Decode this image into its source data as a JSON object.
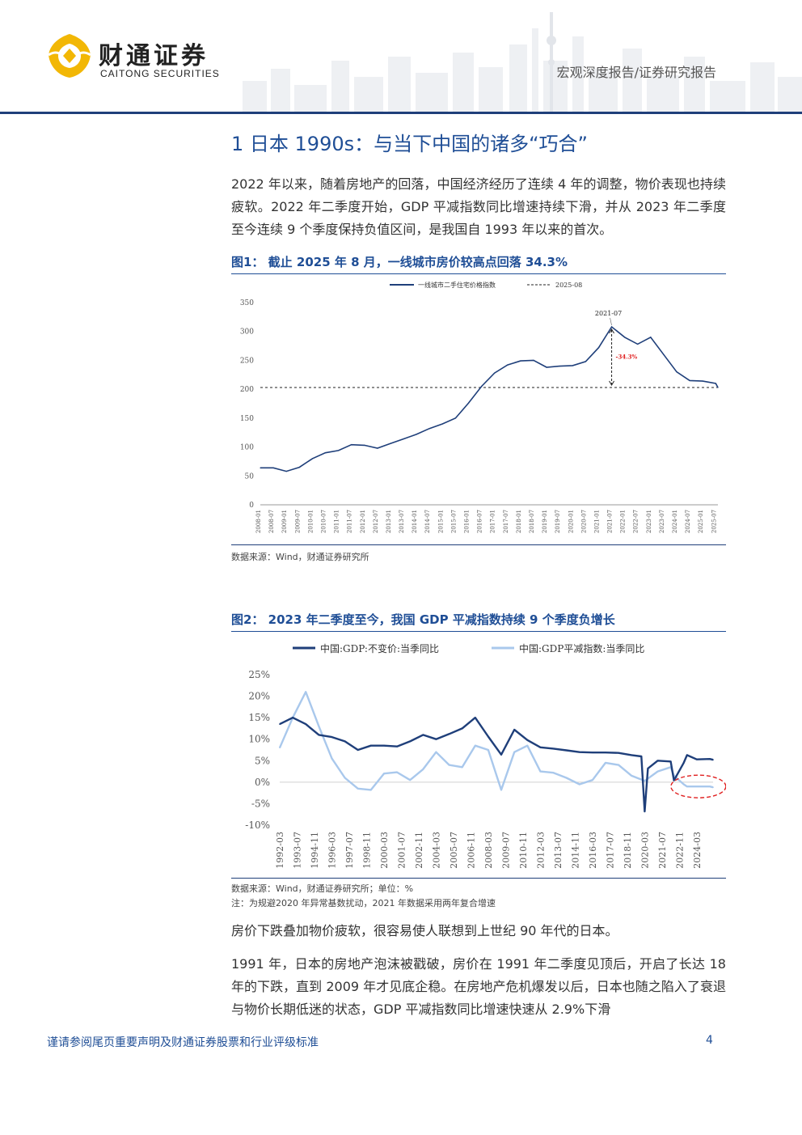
{
  "header": {
    "brand_cn": "财通证券",
    "brand_en": "CAITONG SECURITIES",
    "report_type": "宏观深度报告/证券研究报告"
  },
  "section": {
    "title": "1  日本 1990s：与当下中国的诸多“巧合”"
  },
  "paragraphs": {
    "p1": "2022 年以来，随着房地产的回落，中国经济经历了连续 4 年的调整，物价表现也持续疲软。2022 年二季度开始，GDP 平减指数同比增速持续下滑，并从 2023 年二季度至今连续 9 个季度保持负值区间，是我国自 1993 年以来的首次。",
    "p2": "房价下跌叠加物价疲软，很容易使人联想到上世纪 90 年代的日本。",
    "p3": "1991 年，日本的房地产泡沫被戳破，房价在 1991 年二季度见顶后，开启了长达 18 年的下跌，直到 2009 年才见底企稳。在房地产危机爆发以后，日本也随之陷入了衰退与物价长期低迷的状态，GDP 平减指数同比增速快速从 2.9%下滑"
  },
  "figure1": {
    "title": "图1：  截止 2025 年 8 月，一线城市房价较高点回落 34.3%",
    "source": "数据来源：Wind，财通证券研究所"
  },
  "figure2": {
    "title": "图2：  2023 年二季度至今，我国 GDP 平减指数持续 9 个季度负增长",
    "source": "数据来源：Wind，财通证券研究所；单位：%",
    "note": "注：为规避2020 年异常基数扰动，2021 年数据采用两年复合增速"
  },
  "footer": {
    "disclaimer": "谨请参阅尾页重要声明及财通证券股票和行业评级标准",
    "page": "4"
  },
  "colors": {
    "primary": "#1f4e96",
    "dark_navy": "#1f3f7a",
    "light_series": "#a9c8ec",
    "highlight_red": "#e02020",
    "logo_gold": "#f2b705"
  },
  "chart_data": [
    {
      "type": "line",
      "series": [
        {
          "name": "一线城市二手住宅价格指数",
          "x": [
            "2008-01",
            "2008-07",
            "2009-01",
            "2009-07",
            "2010-01",
            "2010-07",
            "2011-01",
            "2011-07",
            "2012-01",
            "2012-07",
            "2013-01",
            "2013-07",
            "2014-01",
            "2014-07",
            "2015-01",
            "2015-07",
            "2016-01",
            "2016-07",
            "2017-01",
            "2017-07",
            "2018-01",
            "2018-07",
            "2019-01",
            "2019-07",
            "2020-01",
            "2020-07",
            "2021-01",
            "2021-07",
            "2022-01",
            "2022-07",
            "2023-01",
            "2023-07",
            "2024-01",
            "2024-07",
            "2025-01",
            "2025-07",
            "2025-08"
          ],
          "values": [
            64,
            64,
            58,
            65,
            80,
            90,
            94,
            104,
            103,
            98,
            106,
            114,
            122,
            132,
            140,
            150,
            176,
            205,
            228,
            242,
            249,
            250,
            238,
            240,
            241,
            248,
            272,
            308,
            290,
            278,
            290,
            260,
            230,
            215,
            214,
            210,
            203
          ]
        },
        {
          "name": "2025-08",
          "values": [
            203
          ]
        }
      ],
      "yticks": [
        "0",
        "50",
        "100",
        "150",
        "200",
        "250",
        "300",
        "350"
      ],
      "xticks": [
        "2008-01",
        "2008-07",
        "2009-01",
        "2009-07",
        "2010-01",
        "2010-07",
        "2011-01",
        "2011-07",
        "2012-01",
        "2012-07",
        "2013-01",
        "2013-07",
        "2014-01",
        "2014-07",
        "2015-01",
        "2015-07",
        "2016-01",
        "2016-07",
        "2017-01",
        "2017-07",
        "2018-01",
        "2018-07",
        "2019-01",
        "2019-07",
        "2020-01",
        "2020-07",
        "2021-01",
        "2021-07",
        "2022-01",
        "2022-07",
        "2023-01",
        "2023-07",
        "2024-01",
        "2024-07",
        "2025-01",
        "2025-07"
      ],
      "ylim": [
        0,
        350
      ],
      "annotations": [
        "2021-07",
        "-34.3%"
      ]
    },
    {
      "type": "line",
      "series": [
        {
          "name": "中国:GDP:不变价:当季同比",
          "x": [
            "1992-03",
            "1993-03",
            "1994-03",
            "1995-03",
            "1996-03",
            "1997-03",
            "1998-03",
            "1999-03",
            "2000-03",
            "2001-03",
            "2002-03",
            "2003-03",
            "2004-03",
            "2005-03",
            "2006-03",
            "2007-03",
            "2008-03",
            "2009-03",
            "2010-03",
            "2011-03",
            "2012-03",
            "2013-03",
            "2014-03",
            "2015-03",
            "2016-03",
            "2017-03",
            "2018-03",
            "2019-03",
            "2019-12",
            "2020-03",
            "2020-06",
            "2021-03",
            "2022-03",
            "2022-06",
            "2023-03",
            "2023-06",
            "2024-03",
            "2025-03",
            "2025-06"
          ],
          "values": [
            13.5,
            15.0,
            13.5,
            11.0,
            10.5,
            9.5,
            7.5,
            8.5,
            8.5,
            8.3,
            9.5,
            11.0,
            10.0,
            11.2,
            12.5,
            15.0,
            10.6,
            6.4,
            12.2,
            9.8,
            8.1,
            7.8,
            7.4,
            7.0,
            6.9,
            6.9,
            6.8,
            6.3,
            6.0,
            -6.8,
            3.2,
            5.0,
            4.8,
            0.4,
            4.5,
            6.3,
            5.3,
            5.4,
            5.2
          ]
        },
        {
          "name": "中国:GDP平减指数:当季同比",
          "x": [
            "1992-03",
            "1993-03",
            "1994-03",
            "1995-03",
            "1996-03",
            "1997-03",
            "1998-03",
            "1999-03",
            "2000-03",
            "2001-03",
            "2002-03",
            "2003-03",
            "2004-03",
            "2005-03",
            "2006-03",
            "2007-03",
            "2008-03",
            "2009-03",
            "2010-03",
            "2011-03",
            "2012-03",
            "2013-03",
            "2014-03",
            "2015-03",
            "2016-03",
            "2017-03",
            "2018-03",
            "2019-03",
            "2020-03",
            "2021-03",
            "2022-03",
            "2022-06",
            "2023-03",
            "2023-06",
            "2024-03",
            "2025-03",
            "2025-06"
          ],
          "values": [
            8.0,
            15.0,
            21.0,
            13.0,
            5.5,
            1.0,
            -1.5,
            -1.8,
            2.0,
            2.3,
            0.5,
            3.0,
            7.0,
            4.0,
            3.5,
            8.5,
            7.5,
            -1.8,
            7.0,
            8.5,
            2.5,
            2.2,
            1.0,
            -0.5,
            0.5,
            4.5,
            4.0,
            1.5,
            0.3,
            2.5,
            3.5,
            1.5,
            -0.5,
            -1.0,
            -1.0,
            -1.0,
            -1.2
          ]
        }
      ],
      "yticks": [
        "25%",
        "20%",
        "15%",
        "10%",
        "5%",
        "0%",
        "-5%",
        "-10%"
      ],
      "xticks": [
        "1992-03",
        "1993-07",
        "1994-11",
        "1996-03",
        "1997-07",
        "1998-11",
        "2000-03",
        "2001-07",
        "2002-11",
        "2004-03",
        "2005-07",
        "2006-11",
        "2008-03",
        "2009-07",
        "2010-11",
        "2012-03",
        "2013-07",
        "2014-11",
        "2016-03",
        "2017-07",
        "2018-11",
        "2020-03",
        "2021-07",
        "2022-11",
        "2024-03"
      ],
      "ylim": [
        -10,
        25
      ],
      "legend": "top"
    }
  ]
}
